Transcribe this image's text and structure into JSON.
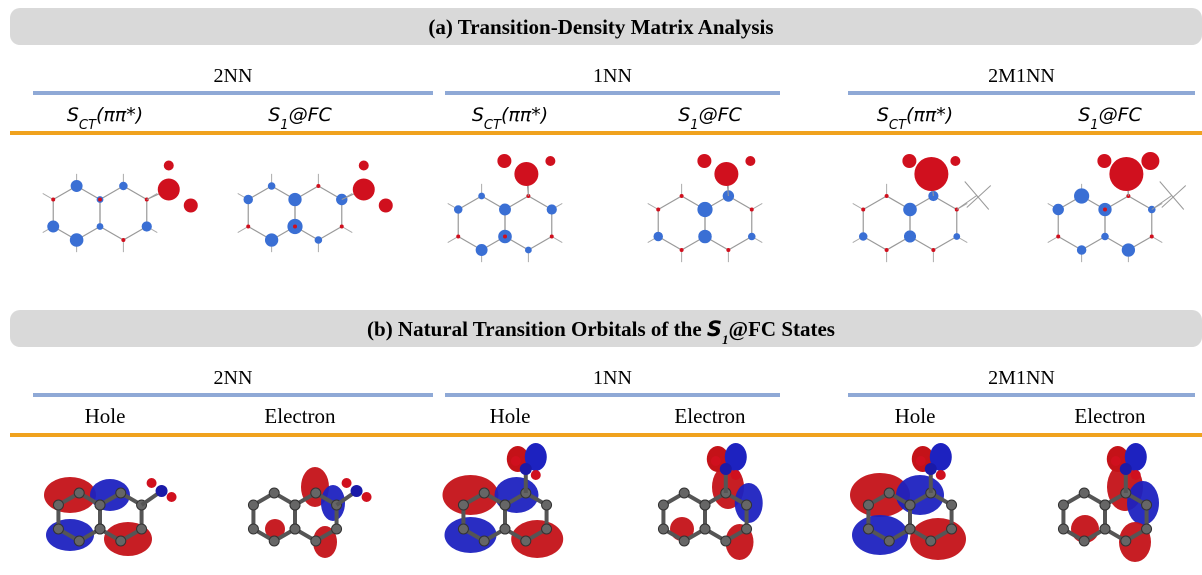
{
  "panels": [
    {
      "title": [
        "(a) Transition-Density Matrix Analysis"
      ],
      "groups": [
        {
          "name": "2NN",
          "columns": [
            [
              "S",
              "CT",
              "(ππ*)"
            ],
            [
              "S",
              "1",
              "@FC"
            ]
          ]
        },
        {
          "name": "1NN",
          "columns": [
            [
              "S",
              "CT",
              "(ππ*)"
            ],
            [
              "S",
              "1",
              "@FC"
            ]
          ]
        },
        {
          "name": "2M1NN",
          "columns": [
            [
              "S",
              "CT",
              "(ππ*)"
            ],
            [
              "S",
              "1",
              "@FC"
            ]
          ]
        }
      ]
    },
    {
      "title": [
        "(b) Natural Transition Orbitals of the ",
        "S",
        "1",
        "@FC States"
      ],
      "groups": [
        {
          "name": "2NN",
          "columns": [
            [
              "Hole"
            ],
            [
              "Electron"
            ]
          ]
        },
        {
          "name": "1NN",
          "columns": [
            [
              "Hole"
            ],
            [
              "Electron"
            ]
          ]
        },
        {
          "name": "2M1NN",
          "columns": [
            [
              "Hole"
            ],
            [
              "Electron"
            ]
          ]
        }
      ]
    }
  ]
}
